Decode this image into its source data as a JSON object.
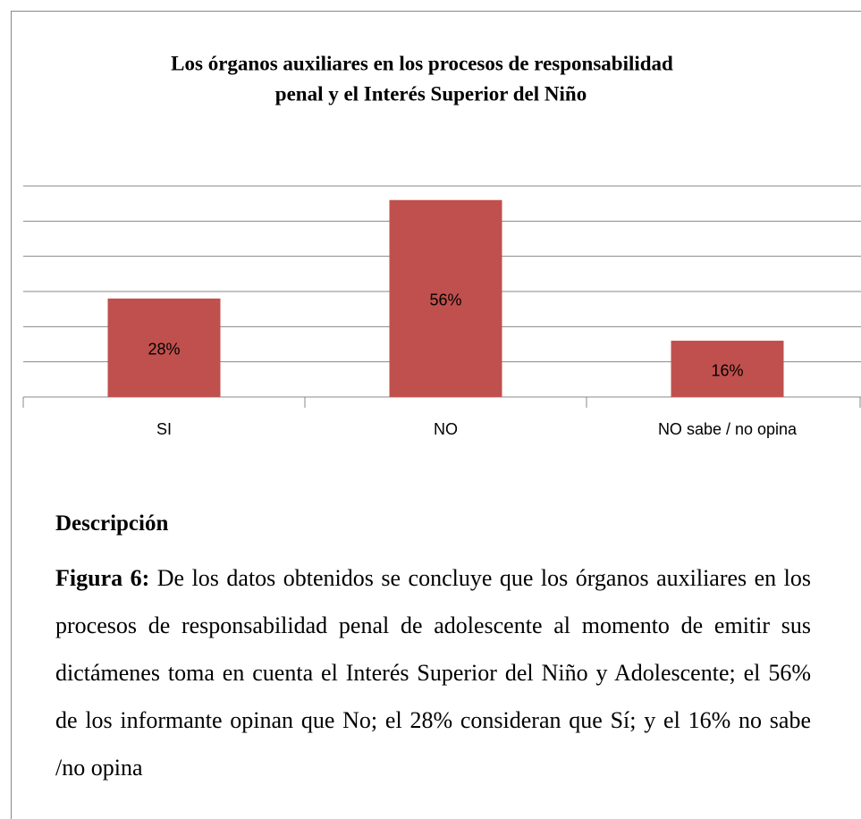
{
  "chart_data": {
    "type": "bar",
    "title": "Los órganos auxiliares en los procesos de responsabilidad",
    "subtitle": "penal y el Interés Superior del Niño",
    "categories": [
      "SI",
      "NO",
      "NO sabe / no opina"
    ],
    "values": [
      28,
      56,
      16
    ],
    "value_labels": [
      "28%",
      "56%",
      "16%"
    ],
    "color": "#c0504d",
    "ylim": [
      0,
      60
    ],
    "yticks": [
      0,
      10,
      20,
      30,
      40,
      50,
      60
    ],
    "grid": true
  },
  "description": {
    "heading": "Descripción",
    "label": "Figura 6:",
    "text": "De los datos obtenidos se concluye que los órganos auxiliares en los procesos de responsabilidad penal de adolescente al momento de emitir sus dictámenes toma en cuenta el Interés Superior del Niño y Adolescente;  el 56% de los informante opinan que No; el 28% consideran que Sí; y el 16% no sabe /no opina"
  }
}
